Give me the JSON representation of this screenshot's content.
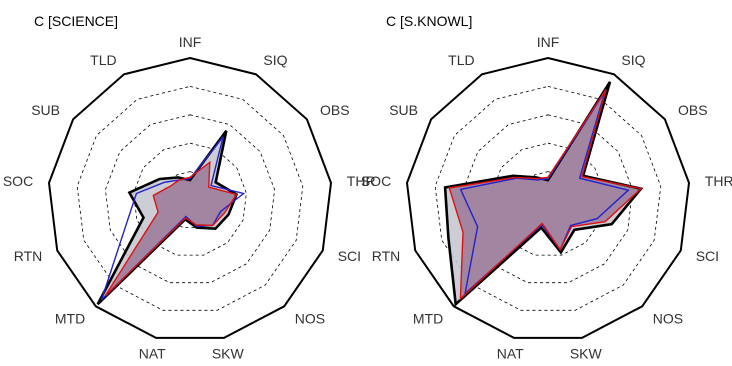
{
  "chart_data": [
    {
      "type": "radar",
      "title": "C   [SCIENCE]",
      "categories": [
        "INF",
        "SIQ",
        "OBS",
        "THR",
        "SCI",
        "NOS",
        "SKW",
        "NAT",
        "MTD",
        "RTN",
        "SOC",
        "SUB",
        "TLD"
      ],
      "rlim": [
        0,
        1
      ],
      "grid_levels": [
        0.2,
        0.4,
        0.6,
        0.8
      ],
      "series": [
        {
          "color": "#000000",
          "fill": "#c8c8d2",
          "values": [
            0.14,
            0.55,
            0.22,
            0.33,
            0.29,
            0.27,
            0.2,
            0.14,
            0.98,
            0.35,
            0.43,
            0.26,
            0.18
          ]
        },
        {
          "color": "#2222cc",
          "fill": "none",
          "values": [
            0.15,
            0.5,
            0.18,
            0.38,
            0.23,
            0.24,
            0.19,
            0.12,
            0.94,
            0.48,
            0.38,
            0.22,
            0.16
          ]
        },
        {
          "color": "#dd1111",
          "fill": "#9a7896",
          "values": [
            0.16,
            0.3,
            0.16,
            0.33,
            0.26,
            0.24,
            0.18,
            0.13,
            0.9,
            0.24,
            0.26,
            0.17,
            0.16
          ]
        }
      ]
    },
    {
      "type": "radar",
      "title": "C   [S.KNOWL]",
      "categories": [
        "INF",
        "SIQ",
        "OBS",
        "THR",
        "SCI",
        "NOS",
        "SKW",
        "NAT",
        "MTD",
        "RTN",
        "SOC",
        "SUB",
        "TLD"
      ],
      "rlim": [
        0,
        1
      ],
      "grid_levels": [
        0.2,
        0.4,
        0.6,
        0.8
      ],
      "series": [
        {
          "color": "#000000",
          "fill": "#c8c8d2",
          "values": [
            0.14,
            0.94,
            0.3,
            0.66,
            0.48,
            0.28,
            0.38,
            0.2,
            0.98,
            0.75,
            0.73,
            0.3,
            0.18
          ]
        },
        {
          "color": "#2222cc",
          "fill": "none",
          "values": [
            0.15,
            0.86,
            0.27,
            0.57,
            0.37,
            0.24,
            0.36,
            0.18,
            0.88,
            0.53,
            0.62,
            0.27,
            0.16
          ]
        },
        {
          "color": "#dd1111",
          "fill": "#9a7896",
          "values": [
            0.16,
            0.88,
            0.29,
            0.66,
            0.43,
            0.25,
            0.36,
            0.17,
            0.93,
            0.64,
            0.7,
            0.28,
            0.17
          ]
        }
      ]
    }
  ]
}
